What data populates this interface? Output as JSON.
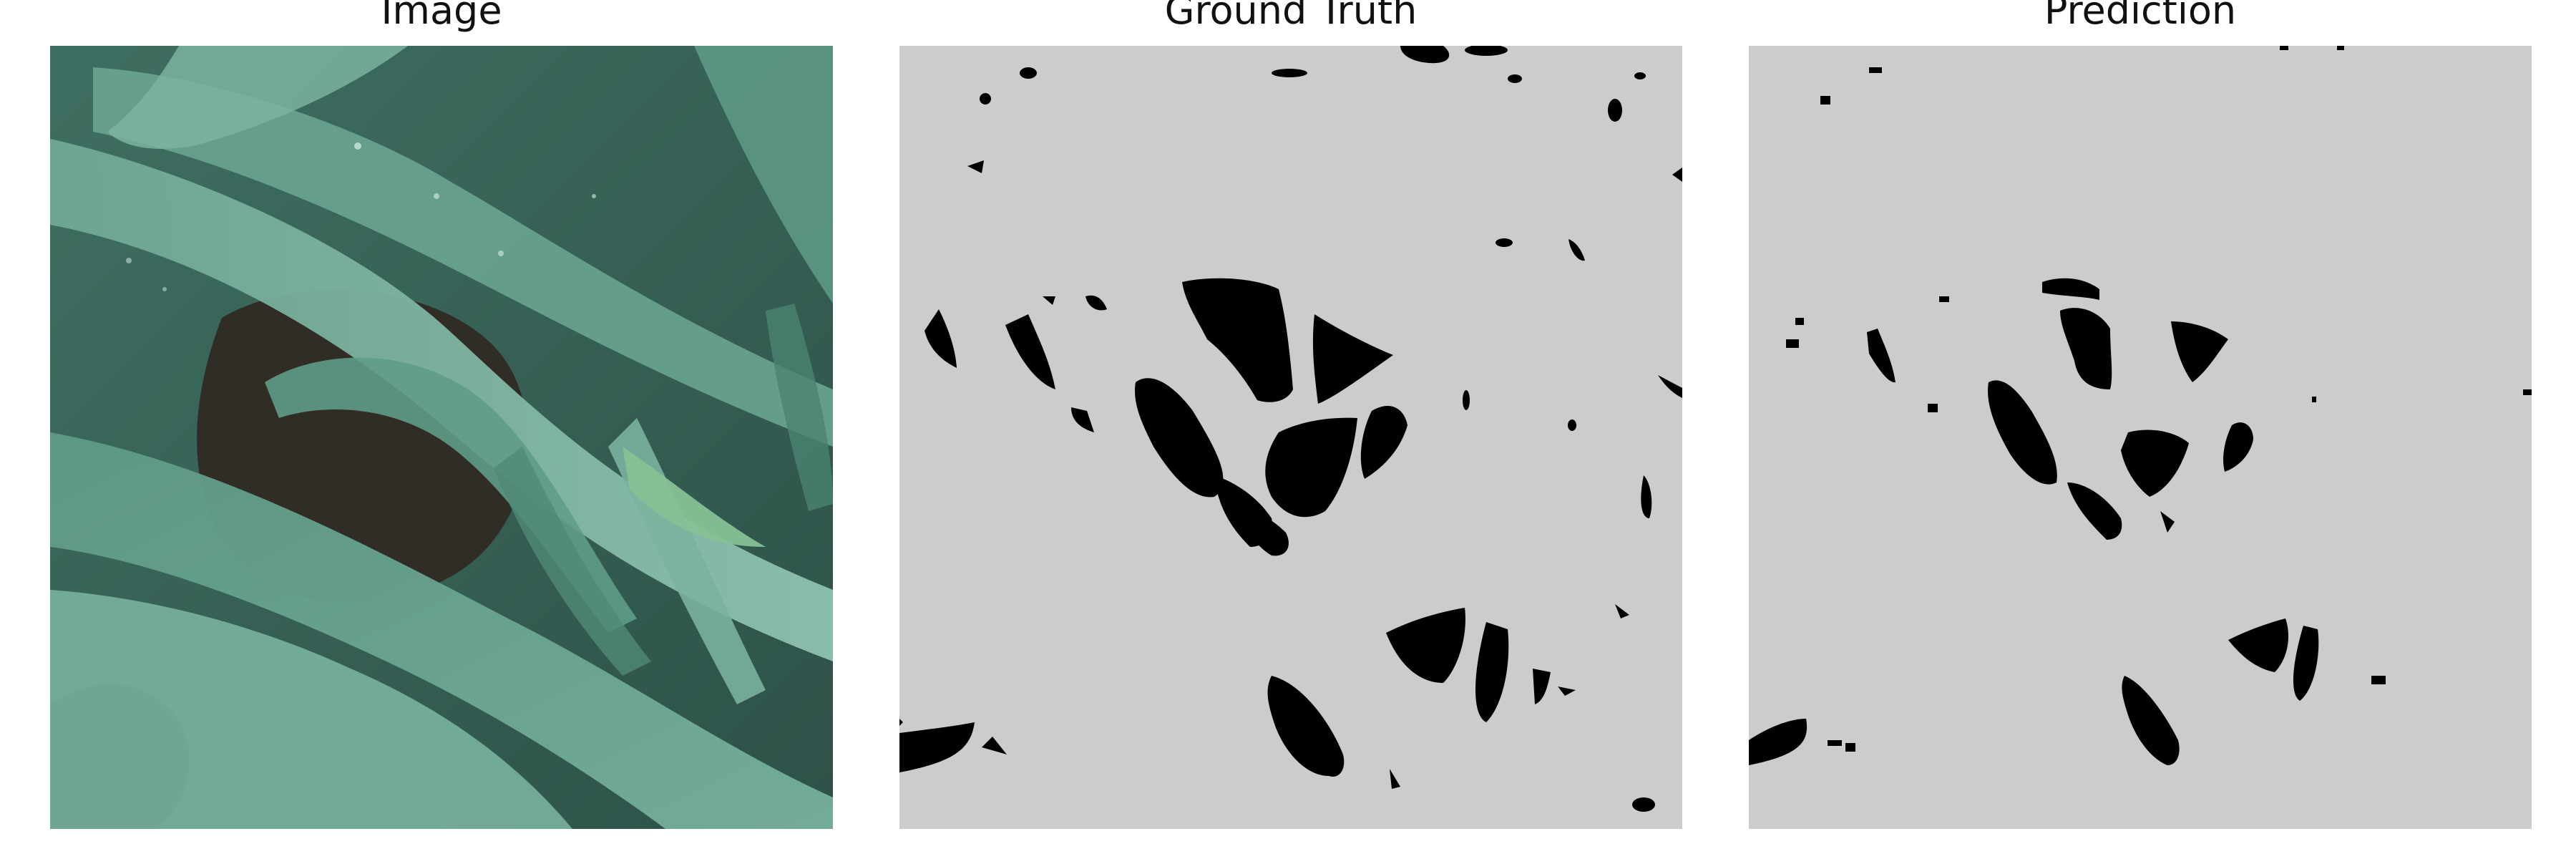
{
  "panels": [
    {
      "title": "Image"
    },
    {
      "title": "Ground Truth"
    },
    {
      "title": "Prediction"
    }
  ],
  "colors": {
    "mask_background": "#cccccc",
    "mask_foreground": "#000000",
    "leaf_light": "#7fb5a2",
    "leaf_dark": "#4e8a78",
    "soil": "#2f2a24"
  }
}
